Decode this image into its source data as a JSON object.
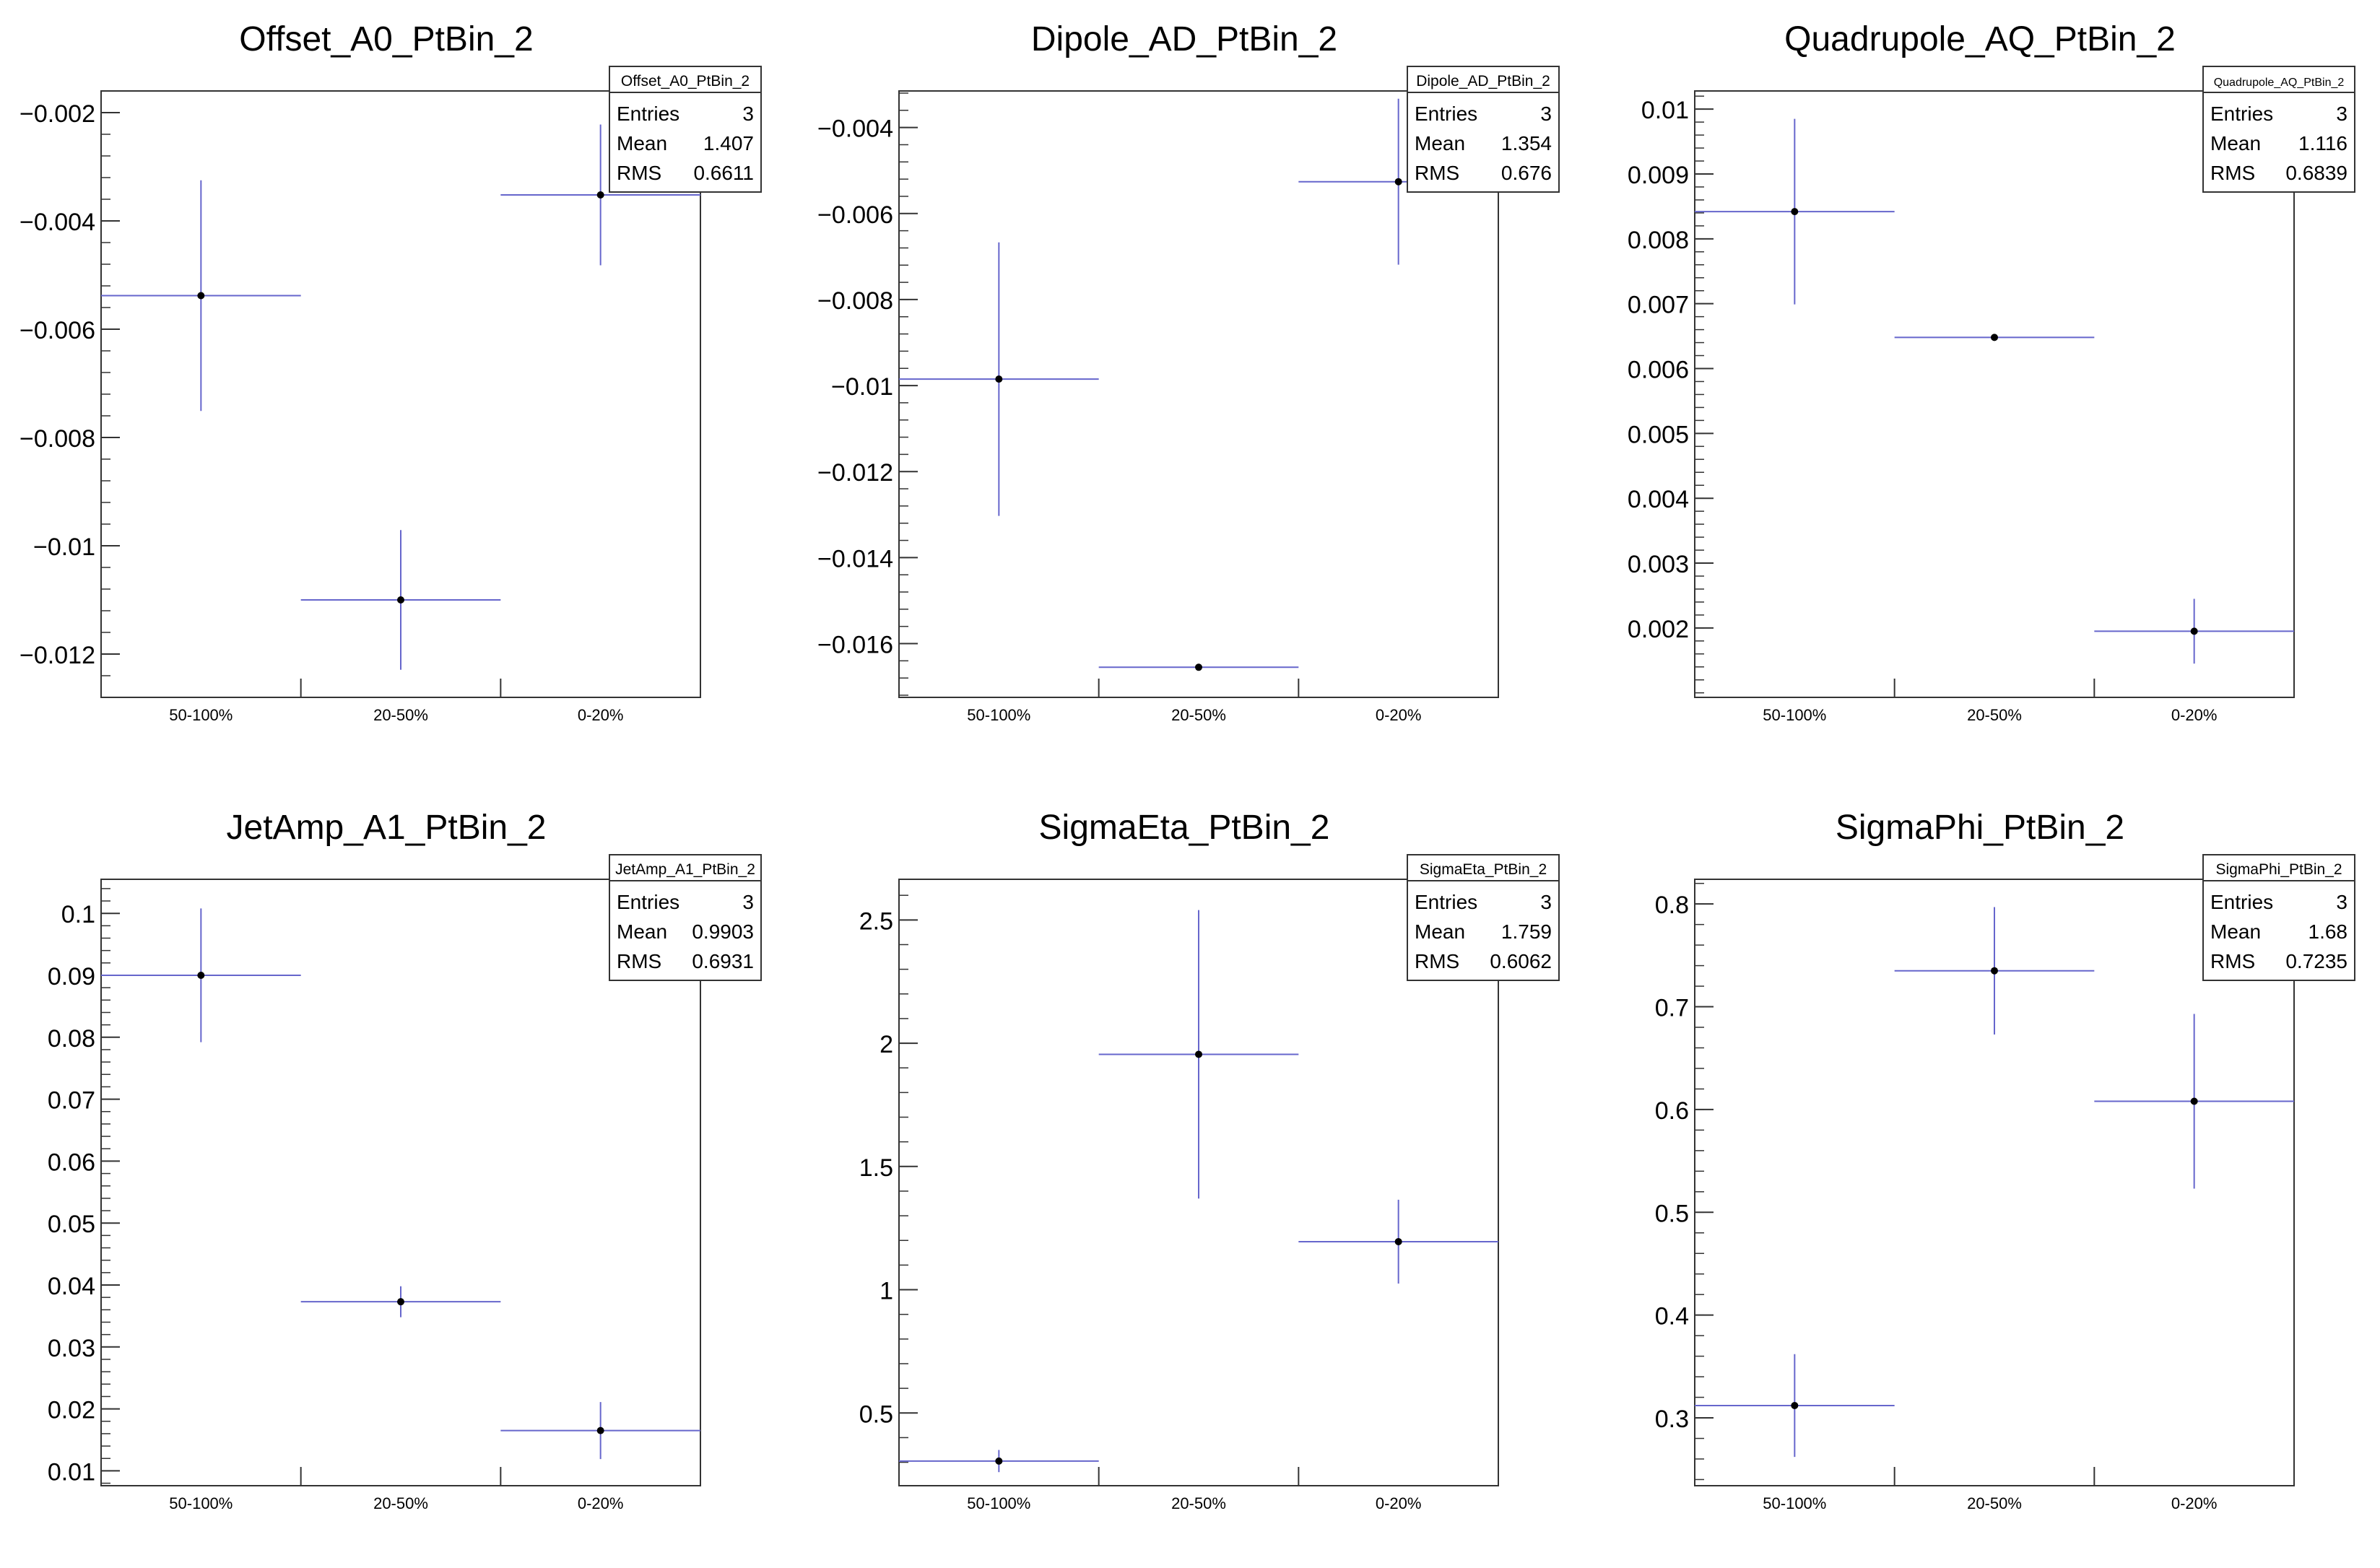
{
  "chart_data": [
    {
      "type": "scatter",
      "title": "Offset_A0_PtBin_2",
      "categories": [
        "50-100%",
        "20-50%",
        "0-20%"
      ],
      "values": [
        -0.00538,
        -0.011,
        -0.00352
      ],
      "errors": [
        0.00213,
        0.00129,
        0.0013
      ],
      "ylim": [
        -0.0128,
        -0.0016
      ],
      "yticks": [
        -0.002,
        -0.004,
        -0.006,
        -0.008,
        -0.01,
        -0.012
      ],
      "ytick_labels": [
        "−0.002",
        "−0.004",
        "−0.006",
        "−0.008",
        "−0.01",
        "−0.012"
      ],
      "xlabel": "",
      "ylabel": "",
      "stats": {
        "name": "Offset_A0_PtBin_2",
        "rows": [
          {
            "label": "Entries",
            "value": "3"
          },
          {
            "label": "Mean",
            "value": "1.407"
          },
          {
            "label": "RMS",
            "value": "0.6611"
          }
        ]
      }
    },
    {
      "type": "scatter",
      "title": "Dipole_AD_PtBin_2",
      "categories": [
        "50-100%",
        "20-50%",
        "0-20%"
      ],
      "values": [
        -0.00985,
        -0.01655,
        -0.00526
      ],
      "errors": [
        0.00318,
        8e-05,
        0.00193
      ],
      "ylim": [
        -0.01725,
        -0.00315
      ],
      "yticks": [
        -0.004,
        -0.006,
        -0.008,
        -0.01,
        -0.012,
        -0.014,
        -0.016
      ],
      "ytick_labels": [
        "−0.004",
        "−0.006",
        "−0.008",
        "−0.01",
        "−0.012",
        "−0.014",
        "−0.016"
      ],
      "xlabel": "",
      "ylabel": "",
      "stats": {
        "name": "Dipole_AD_PtBin_2",
        "rows": [
          {
            "label": "Entries",
            "value": "3"
          },
          {
            "label": "Mean",
            "value": "1.354"
          },
          {
            "label": "RMS",
            "value": "0.676"
          }
        ]
      }
    },
    {
      "type": "scatter",
      "title": "Quadrupole_AQ_PtBin_2",
      "categories": [
        "50-100%",
        "20-50%",
        "0-20%"
      ],
      "values": [
        0.00842,
        0.00648,
        0.00195
      ],
      "errors": [
        0.00143,
        3e-05,
        0.0005
      ],
      "ylim": [
        0.00093,
        0.01028
      ],
      "yticks": [
        0.01,
        0.009,
        0.008,
        0.007,
        0.006,
        0.005,
        0.004,
        0.003,
        0.002
      ],
      "ytick_labels": [
        "0.01",
        "0.009",
        "0.008",
        "0.007",
        "0.006",
        "0.005",
        "0.004",
        "0.003",
        "0.002"
      ],
      "xlabel": "",
      "ylabel": "",
      "stats": {
        "name": "Quadrupole_AQ_PtBin_2",
        "rows": [
          {
            "label": "Entries",
            "value": "3"
          },
          {
            "label": "Mean",
            "value": "1.116"
          },
          {
            "label": "RMS",
            "value": "0.6839"
          }
        ]
      }
    },
    {
      "type": "scatter",
      "title": "JetAmp_A1_PtBin_2",
      "categories": [
        "50-100%",
        "20-50%",
        "0-20%"
      ],
      "values": [
        0.09,
        0.0373,
        0.0165
      ],
      "errors": [
        0.0108,
        0.0025,
        0.0046
      ],
      "ylim": [
        0.0076,
        0.1055
      ],
      "yticks": [
        0.1,
        0.09,
        0.08,
        0.07,
        0.06,
        0.05,
        0.04,
        0.03,
        0.02,
        0.01
      ],
      "ytick_labels": [
        "0.1",
        "0.09",
        "0.08",
        "0.07",
        "0.06",
        "0.05",
        "0.04",
        "0.03",
        "0.02",
        "0.01"
      ],
      "xlabel": "",
      "ylabel": "",
      "stats": {
        "name": "JetAmp_A1_PtBin_2",
        "rows": [
          {
            "label": "Entries",
            "value": "3"
          },
          {
            "label": "Mean",
            "value": "0.9903"
          },
          {
            "label": "RMS",
            "value": "0.6931"
          }
        ]
      }
    },
    {
      "type": "scatter",
      "title": "SigmaEta_PtBin_2",
      "categories": [
        "50-100%",
        "20-50%",
        "0-20%"
      ],
      "values": [
        0.305,
        1.955,
        1.195
      ],
      "errors": [
        0.045,
        0.585,
        0.17
      ],
      "ylim": [
        0.205,
        2.665
      ],
      "yticks": [
        2.5,
        2,
        1.5,
        1,
        0.5
      ],
      "ytick_labels": [
        "2.5",
        "2",
        "1.5",
        "1",
        "0.5"
      ],
      "xlabel": "",
      "ylabel": "",
      "stats": {
        "name": "SigmaEta_PtBin_2",
        "rows": [
          {
            "label": "Entries",
            "value": "3"
          },
          {
            "label": "Mean",
            "value": "1.759"
          },
          {
            "label": "RMS",
            "value": "0.6062"
          }
        ]
      }
    },
    {
      "type": "scatter",
      "title": "SigmaPhi_PtBin_2",
      "categories": [
        "50-100%",
        "20-50%",
        "0-20%"
      ],
      "values": [
        0.312,
        0.735,
        0.608
      ],
      "errors": [
        0.05,
        0.062,
        0.085
      ],
      "ylim": [
        0.234,
        0.824
      ],
      "yticks": [
        0.8,
        0.7,
        0.6,
        0.5,
        0.4,
        0.3
      ],
      "ytick_labels": [
        "0.8",
        "0.7",
        "0.6",
        "0.5",
        "0.4",
        "0.3"
      ],
      "xlabel": "",
      "ylabel": "",
      "stats": {
        "name": "SigmaPhi_PtBin_2",
        "rows": [
          {
            "label": "Entries",
            "value": "3"
          },
          {
            "label": "Mean",
            "value": "1.68"
          },
          {
            "label": "RMS",
            "value": "0.7235"
          }
        ]
      }
    }
  ],
  "colors": {
    "error_bar": "#6666cc",
    "marker": "#000000",
    "frame": "#333333"
  }
}
